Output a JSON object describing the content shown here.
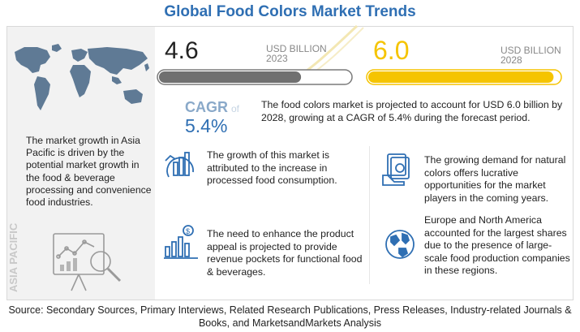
{
  "title": "Global Food Colors Market Trends",
  "chart_data": {
    "type": "bar",
    "categories": [
      "2023",
      "2028"
    ],
    "values": [
      4.6,
      6.0
    ],
    "unit": "USD BILLION",
    "cagr_label": "CAGR",
    "cagr_of": "of",
    "cagr": "5.4%",
    "colors": {
      "bar_2023": "#707070",
      "bar_2028": "#f5c400"
    }
  },
  "labels": {
    "v2023": "4.6",
    "v2028": "6.0",
    "unit": "USD  BILLION",
    "unit2": "USD BILLION",
    "y2023": "2023",
    "y2028": "2028"
  },
  "cagr_text": "The food colors market is projected to account for USD 6.0 billion by 2028, growing at a CAGR of 5.4% during the forecast period.",
  "asia": {
    "text": "The market growth in Asia Pacific is driven by the potential market growth in the food & beverage processing and convenience food industries.",
    "vertical_label": "ASIA PACIFIC"
  },
  "points": {
    "p1": "The growth of this market is attributed to the increase in processed food consumption.",
    "p2": "The growing demand for natural colors offers lucrative opportunities for the market players in the coming years.",
    "p3": "The need to enhance the product appeal is projected to provide revenue pockets for functional food & beverages.",
    "p4": "Europe and North America accounted for the largest shares due to the presence of large-scale food production companies in these regions."
  },
  "icons": {
    "p1": "bar-chart-grow-icon",
    "p2": "money-hand-icon",
    "p3": "dollar-chart-icon",
    "p4": "globe-icon"
  },
  "source": "Source: Secondary Sources, Primary Interviews, Related Research Publications, Press Releases, Industry-related Journals & Books, and MarketsandMarkets Analysis"
}
